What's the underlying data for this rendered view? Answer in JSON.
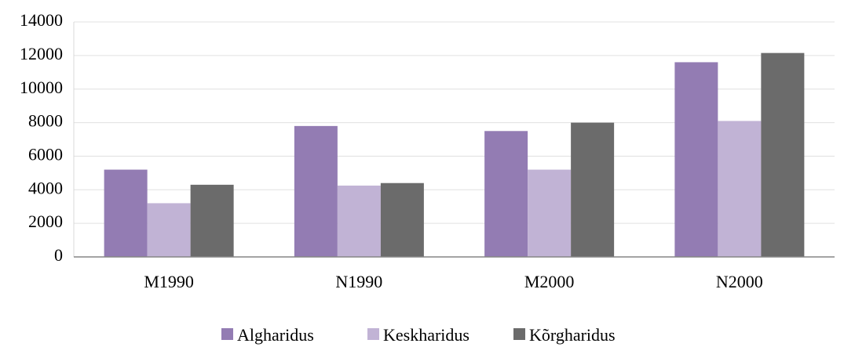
{
  "chart_data": {
    "type": "bar",
    "categories": [
      "M1990",
      "N1990",
      "M2000",
      "N2000"
    ],
    "series": [
      {
        "name": "Algharidus",
        "color": "#937cb3",
        "values": [
          5200,
          7800,
          7500,
          11600
        ]
      },
      {
        "name": "Keskharidus",
        "color": "#c1b3d5",
        "values": [
          3200,
          4250,
          5200,
          8100
        ]
      },
      {
        "name": "Kõrgharidus",
        "color": "#6b6b6b",
        "values": [
          4300,
          4400,
          8000,
          12150
        ]
      }
    ],
    "ylim": [
      0,
      14000
    ],
    "yticks": [
      0,
      2000,
      4000,
      6000,
      8000,
      10000,
      12000,
      14000
    ],
    "grid": true,
    "legend": "bottom"
  }
}
